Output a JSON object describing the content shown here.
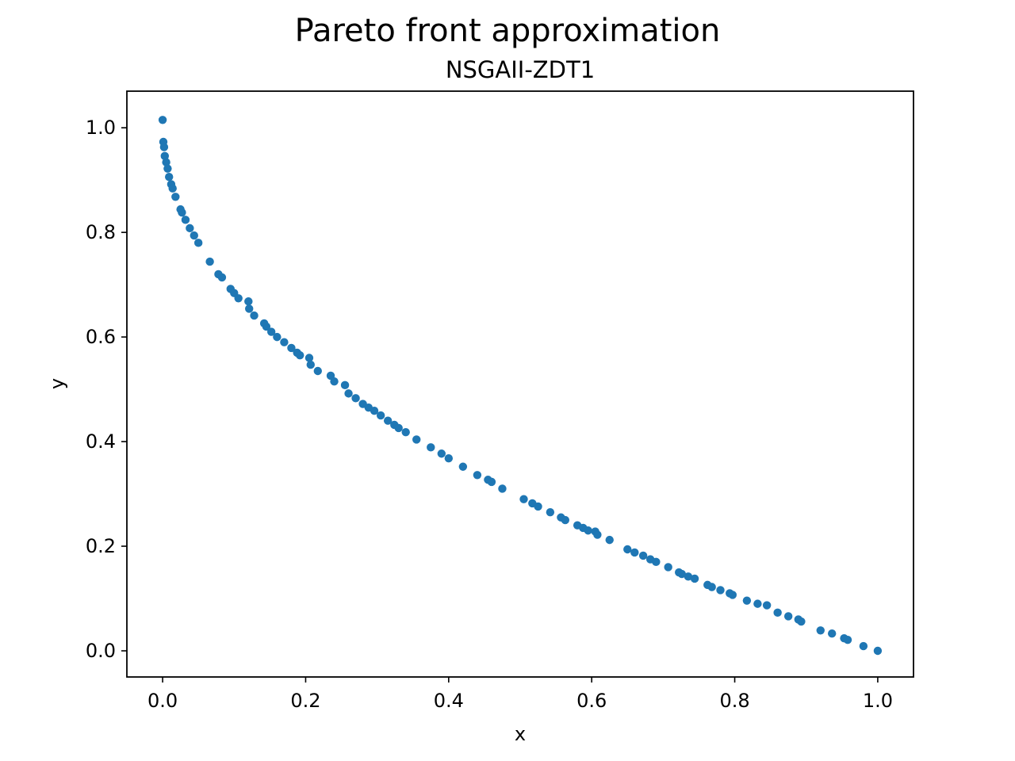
{
  "chart_data": {
    "type": "scatter",
    "title": "Pareto front approximation",
    "subtitle": "NSGAII-ZDT1",
    "xlabel": "x",
    "ylabel": "y",
    "xlim": [
      -0.05,
      1.05
    ],
    "ylim": [
      -0.05,
      1.07
    ],
    "xticks": [
      0.0,
      0.2,
      0.4,
      0.6,
      0.8,
      1.0
    ],
    "xtick_labels": [
      "0.0",
      "0.2",
      "0.4",
      "0.6",
      "0.8",
      "1.0"
    ],
    "yticks": [
      0.0,
      0.2,
      0.4,
      0.6,
      0.8,
      1.0
    ],
    "ytick_labels": [
      "0.0",
      "0.2",
      "0.4",
      "0.6",
      "0.8",
      "1.0"
    ],
    "grid": false,
    "marker_color": "#1f77b4",
    "series": [
      {
        "name": "NSGAII-ZDT1",
        "x": [
          0.0,
          0.001,
          0.002,
          0.003,
          0.005,
          0.007,
          0.009,
          0.012,
          0.014,
          0.018,
          0.025,
          0.027,
          0.032,
          0.038,
          0.044,
          0.05,
          0.066,
          0.078,
          0.083,
          0.095,
          0.1,
          0.106,
          0.12,
          0.121,
          0.128,
          0.142,
          0.145,
          0.152,
          0.16,
          0.17,
          0.18,
          0.188,
          0.192,
          0.205,
          0.207,
          0.217,
          0.235,
          0.24,
          0.255,
          0.26,
          0.27,
          0.28,
          0.288,
          0.296,
          0.305,
          0.315,
          0.324,
          0.33,
          0.34,
          0.355,
          0.375,
          0.39,
          0.4,
          0.42,
          0.44,
          0.455,
          0.46,
          0.475,
          0.505,
          0.517,
          0.525,
          0.542,
          0.557,
          0.563,
          0.58,
          0.588,
          0.595,
          0.605,
          0.608,
          0.625,
          0.65,
          0.66,
          0.672,
          0.682,
          0.69,
          0.707,
          0.722,
          0.726,
          0.735,
          0.744,
          0.762,
          0.768,
          0.78,
          0.793,
          0.797,
          0.817,
          0.832,
          0.845,
          0.86,
          0.875,
          0.889,
          0.893,
          0.92,
          0.936,
          0.953,
          0.958,
          0.98,
          1.0
        ],
        "y": [
          1.015,
          0.973,
          0.963,
          0.946,
          0.934,
          0.922,
          0.906,
          0.892,
          0.884,
          0.868,
          0.844,
          0.838,
          0.824,
          0.808,
          0.794,
          0.78,
          0.744,
          0.72,
          0.714,
          0.692,
          0.684,
          0.674,
          0.668,
          0.654,
          0.641,
          0.626,
          0.62,
          0.61,
          0.6,
          0.59,
          0.579,
          0.57,
          0.565,
          0.56,
          0.547,
          0.535,
          0.526,
          0.515,
          0.508,
          0.492,
          0.483,
          0.472,
          0.465,
          0.459,
          0.45,
          0.44,
          0.432,
          0.426,
          0.418,
          0.404,
          0.389,
          0.377,
          0.368,
          0.352,
          0.336,
          0.327,
          0.323,
          0.31,
          0.29,
          0.282,
          0.276,
          0.265,
          0.255,
          0.25,
          0.24,
          0.235,
          0.23,
          0.228,
          0.222,
          0.212,
          0.194,
          0.188,
          0.182,
          0.175,
          0.17,
          0.16,
          0.15,
          0.147,
          0.142,
          0.138,
          0.126,
          0.122,
          0.116,
          0.11,
          0.107,
          0.096,
          0.09,
          0.087,
          0.073,
          0.066,
          0.06,
          0.056,
          0.039,
          0.033,
          0.024,
          0.021,
          0.009,
          0.0
        ]
      }
    ]
  }
}
